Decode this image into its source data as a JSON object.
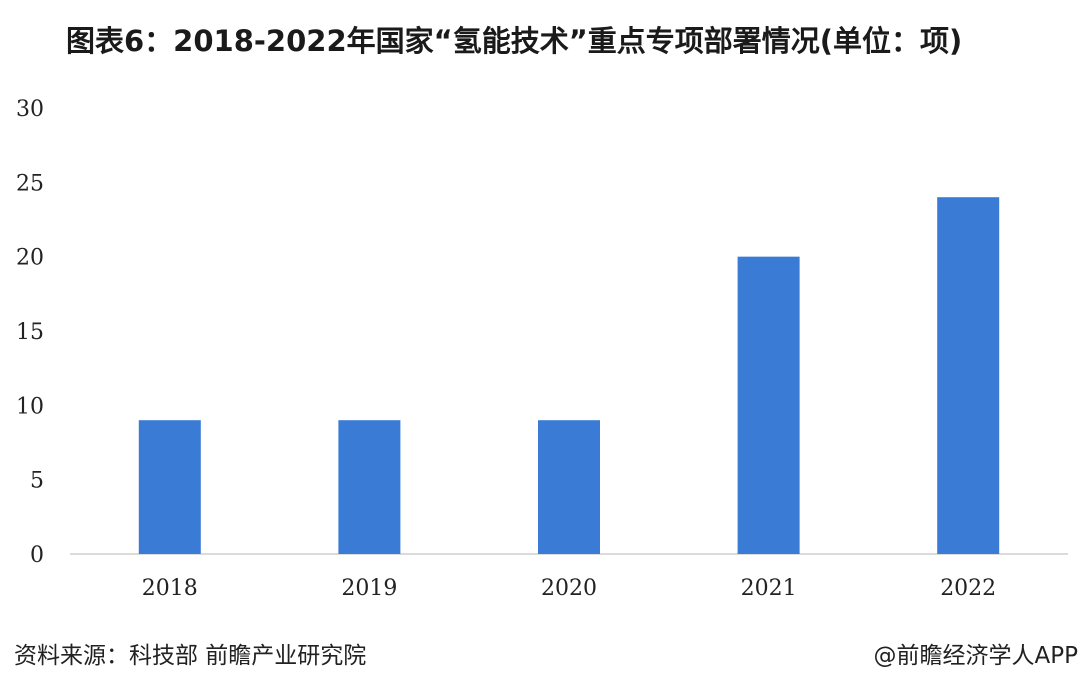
{
  "title": "图表6：2018-2022年国家“氢能技术”重点专项部署情况(单位：项)",
  "source": "资料来源：科技部 前瞻产业研究院",
  "credit": "@前瞻经济学人APP",
  "chart_data": {
    "type": "bar",
    "categories": [
      "2018",
      "2019",
      "2020",
      "2021",
      "2022"
    ],
    "values": [
      9,
      9,
      9,
      20,
      24
    ],
    "ylim": [
      0,
      30
    ],
    "yticks": [
      0,
      5,
      10,
      15,
      20,
      25,
      30
    ],
    "grid": false,
    "legend": "none",
    "bar_color": "#3a7bd5"
  }
}
